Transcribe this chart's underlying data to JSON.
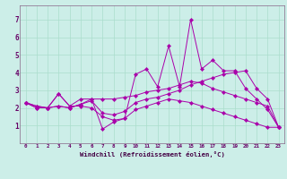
{
  "xlabel": "Windchill (Refroidissement éolien,°C)",
  "background_color": "#cceee8",
  "grid_color": "#aaddcc",
  "line_color": "#aa00aa",
  "spine_color": "#886688",
  "tick_color": "#660066",
  "label_color": "#440044",
  "x_values": [
    0,
    1,
    2,
    3,
    4,
    5,
    6,
    7,
    8,
    9,
    10,
    11,
    12,
    13,
    14,
    15,
    16,
    17,
    18,
    19,
    20,
    21,
    22,
    23
  ],
  "series": [
    [
      2.3,
      2.0,
      2.0,
      2.8,
      2.1,
      2.5,
      2.5,
      0.8,
      1.2,
      1.4,
      3.9,
      4.2,
      3.2,
      5.5,
      3.2,
      7.0,
      4.2,
      4.7,
      4.1,
      4.1,
      3.1,
      2.5,
      1.9,
      0.9
    ],
    [
      2.3,
      2.1,
      2.0,
      2.1,
      2.0,
      2.2,
      2.4,
      1.7,
      1.6,
      1.8,
      2.3,
      2.5,
      2.6,
      2.8,
      3.0,
      3.3,
      3.5,
      3.7,
      3.9,
      4.0,
      4.1,
      3.1,
      2.5,
      0.9
    ],
    [
      2.3,
      2.1,
      2.0,
      2.1,
      2.0,
      2.2,
      2.5,
      2.5,
      2.5,
      2.6,
      2.7,
      2.9,
      3.0,
      3.1,
      3.3,
      3.5,
      3.4,
      3.1,
      2.9,
      2.7,
      2.5,
      2.3,
      2.1,
      0.9
    ],
    [
      2.3,
      2.0,
      2.0,
      2.8,
      2.1,
      2.1,
      2.0,
      1.5,
      1.3,
      1.4,
      1.9,
      2.1,
      2.3,
      2.5,
      2.4,
      2.3,
      2.1,
      1.9,
      1.7,
      1.5,
      1.3,
      1.1,
      0.9,
      0.9
    ]
  ],
  "xlim": [
    -0.5,
    23.5
  ],
  "ylim": [
    0,
    7.8
  ],
  "xticks": [
    0,
    1,
    2,
    3,
    4,
    5,
    6,
    7,
    8,
    9,
    10,
    11,
    12,
    13,
    14,
    15,
    16,
    17,
    18,
    19,
    20,
    21,
    22,
    23
  ],
  "yticks": [
    1,
    2,
    3,
    4,
    5,
    6,
    7
  ],
  "xtick_fontsize": 4.2,
  "ytick_fontsize": 5.5,
  "xlabel_fontsize": 5.2,
  "linewidth": 0.7,
  "markersize": 2.2
}
